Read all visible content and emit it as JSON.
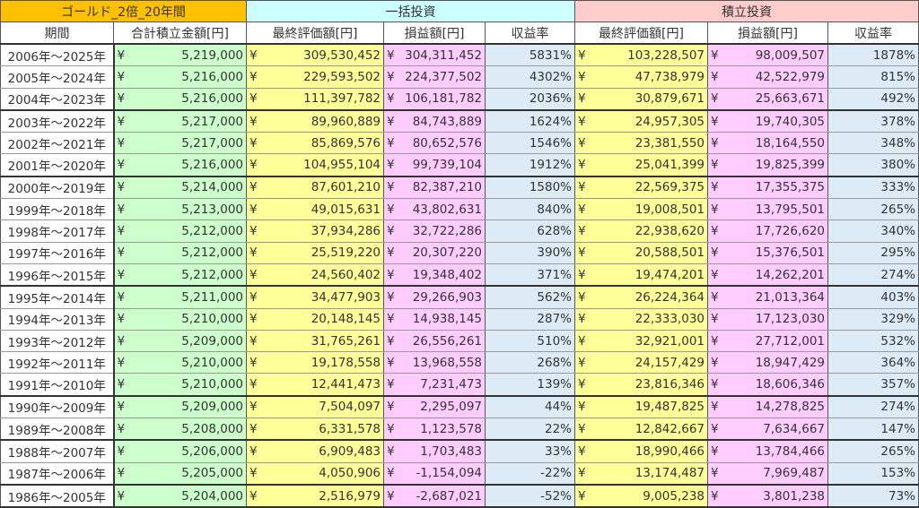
{
  "header": {
    "groups": [
      "ゴールド_2倍_20年間",
      "一括投資",
      "積立投資"
    ],
    "columns": [
      "期間",
      "合計積立金額[円]",
      "最終評価額[円]",
      "損益額[円]",
      "収益率",
      "最終評価額[円]",
      "損益額[円]",
      "収益率"
    ]
  },
  "currency_symbol": "¥",
  "colors": {
    "group_gold": "#FFC000",
    "group_lump": "#CCFFFF",
    "group_dca": "#FFCCCC",
    "total": "#CCFFCC",
    "final": "#FFFF99",
    "profit": "#FFCCFF",
    "rate": "#DDEBF7"
  },
  "rows": [
    {
      "period": "2006年～2025年",
      "total": "5,219,000",
      "lump_final": "309,530,452",
      "lump_profit": "304,311,452",
      "lump_rate": "5831%",
      "dca_final": "103,228,507",
      "dca_profit": "98,009,507",
      "dca_rate": "1878%"
    },
    {
      "period": "2005年～2024年",
      "total": "5,216,000",
      "lump_final": "229,593,502",
      "lump_profit": "224,377,502",
      "lump_rate": "4302%",
      "dca_final": "47,738,979",
      "dca_profit": "42,522,979",
      "dca_rate": "815%"
    },
    {
      "period": "2004年～2023年",
      "total": "5,216,000",
      "lump_final": "111,397,782",
      "lump_profit": "106,181,782",
      "lump_rate": "2036%",
      "dca_final": "30,879,671",
      "dca_profit": "25,663,671",
      "dca_rate": "492%"
    },
    {
      "period": "2003年～2022年",
      "total": "5,217,000",
      "lump_final": "89,960,889",
      "lump_profit": "84,743,889",
      "lump_rate": "1624%",
      "dca_final": "24,957,305",
      "dca_profit": "19,740,305",
      "dca_rate": "378%"
    },
    {
      "period": "2002年～2021年",
      "total": "5,217,000",
      "lump_final": "85,869,576",
      "lump_profit": "80,652,576",
      "lump_rate": "1546%",
      "dca_final": "23,381,550",
      "dca_profit": "18,164,550",
      "dca_rate": "348%"
    },
    {
      "period": "2001年～2020年",
      "total": "5,216,000",
      "lump_final": "104,955,104",
      "lump_profit": "99,739,104",
      "lump_rate": "1912%",
      "dca_final": "25,041,399",
      "dca_profit": "19,825,399",
      "dca_rate": "380%"
    },
    {
      "period": "2000年～2019年",
      "total": "5,214,000",
      "lump_final": "87,601,210",
      "lump_profit": "82,387,210",
      "lump_rate": "1580%",
      "dca_final": "22,569,375",
      "dca_profit": "17,355,375",
      "dca_rate": "333%"
    },
    {
      "period": "1999年～2018年",
      "total": "5,213,000",
      "lump_final": "49,015,631",
      "lump_profit": "43,802,631",
      "lump_rate": "840%",
      "dca_final": "19,008,501",
      "dca_profit": "13,795,501",
      "dca_rate": "265%"
    },
    {
      "period": "1998年～2017年",
      "total": "5,212,000",
      "lump_final": "37,934,286",
      "lump_profit": "32,722,286",
      "lump_rate": "628%",
      "dca_final": "22,938,620",
      "dca_profit": "17,726,620",
      "dca_rate": "340%"
    },
    {
      "period": "1997年～2016年",
      "total": "5,212,000",
      "lump_final": "25,519,220",
      "lump_profit": "20,307,220",
      "lump_rate": "390%",
      "dca_final": "20,588,501",
      "dca_profit": "15,376,501",
      "dca_rate": "295%"
    },
    {
      "period": "1996年～2015年",
      "total": "5,212,000",
      "lump_final": "24,560,402",
      "lump_profit": "19,348,402",
      "lump_rate": "371%",
      "dca_final": "19,474,201",
      "dca_profit": "14,262,201",
      "dca_rate": "274%"
    },
    {
      "period": "1995年～2014年",
      "total": "5,211,000",
      "lump_final": "34,477,903",
      "lump_profit": "29,266,903",
      "lump_rate": "562%",
      "dca_final": "26,224,364",
      "dca_profit": "21,013,364",
      "dca_rate": "403%"
    },
    {
      "period": "1994年～2013年",
      "total": "5,210,000",
      "lump_final": "20,148,145",
      "lump_profit": "14,938,145",
      "lump_rate": "287%",
      "dca_final": "22,333,030",
      "dca_profit": "17,123,030",
      "dca_rate": "329%"
    },
    {
      "period": "1993年～2012年",
      "total": "5,209,000",
      "lump_final": "31,765,261",
      "lump_profit": "26,556,261",
      "lump_rate": "510%",
      "dca_final": "32,921,001",
      "dca_profit": "27,712,001",
      "dca_rate": "532%"
    },
    {
      "period": "1992年～2011年",
      "total": "5,210,000",
      "lump_final": "19,178,558",
      "lump_profit": "13,968,558",
      "lump_rate": "268%",
      "dca_final": "24,157,429",
      "dca_profit": "18,947,429",
      "dca_rate": "364%"
    },
    {
      "period": "1991年～2010年",
      "total": "5,210,000",
      "lump_final": "12,441,473",
      "lump_profit": "7,231,473",
      "lump_rate": "139%",
      "dca_final": "23,816,346",
      "dca_profit": "18,606,346",
      "dca_rate": "357%"
    },
    {
      "period": "1990年～2009年",
      "total": "5,209,000",
      "lump_final": "7,504,097",
      "lump_profit": "2,295,097",
      "lump_rate": "44%",
      "dca_final": "19,487,825",
      "dca_profit": "14,278,825",
      "dca_rate": "274%"
    },
    {
      "period": "1989年～2008年",
      "total": "5,208,000",
      "lump_final": "6,331,578",
      "lump_profit": "1,123,578",
      "lump_rate": "22%",
      "dca_final": "12,842,667",
      "dca_profit": "7,634,667",
      "dca_rate": "147%"
    },
    {
      "period": "1988年～2007年",
      "total": "5,206,000",
      "lump_final": "6,909,483",
      "lump_profit": "1,703,483",
      "lump_rate": "33%",
      "dca_final": "18,990,466",
      "dca_profit": "13,784,466",
      "dca_rate": "265%"
    },
    {
      "period": "1987年～2006年",
      "total": "5,205,000",
      "lump_final": "4,050,906",
      "lump_profit": "-1,154,094",
      "lump_rate": "-22%",
      "dca_final": "13,174,487",
      "dca_profit": "7,969,487",
      "dca_rate": "153%"
    },
    {
      "period": "1986年～2005年",
      "total": "5,204,000",
      "lump_final": "2,516,979",
      "lump_profit": "-2,687,021",
      "lump_rate": "-52%",
      "dca_final": "9,005,238",
      "dca_profit": "3,801,238",
      "dca_rate": "73%"
    }
  ]
}
